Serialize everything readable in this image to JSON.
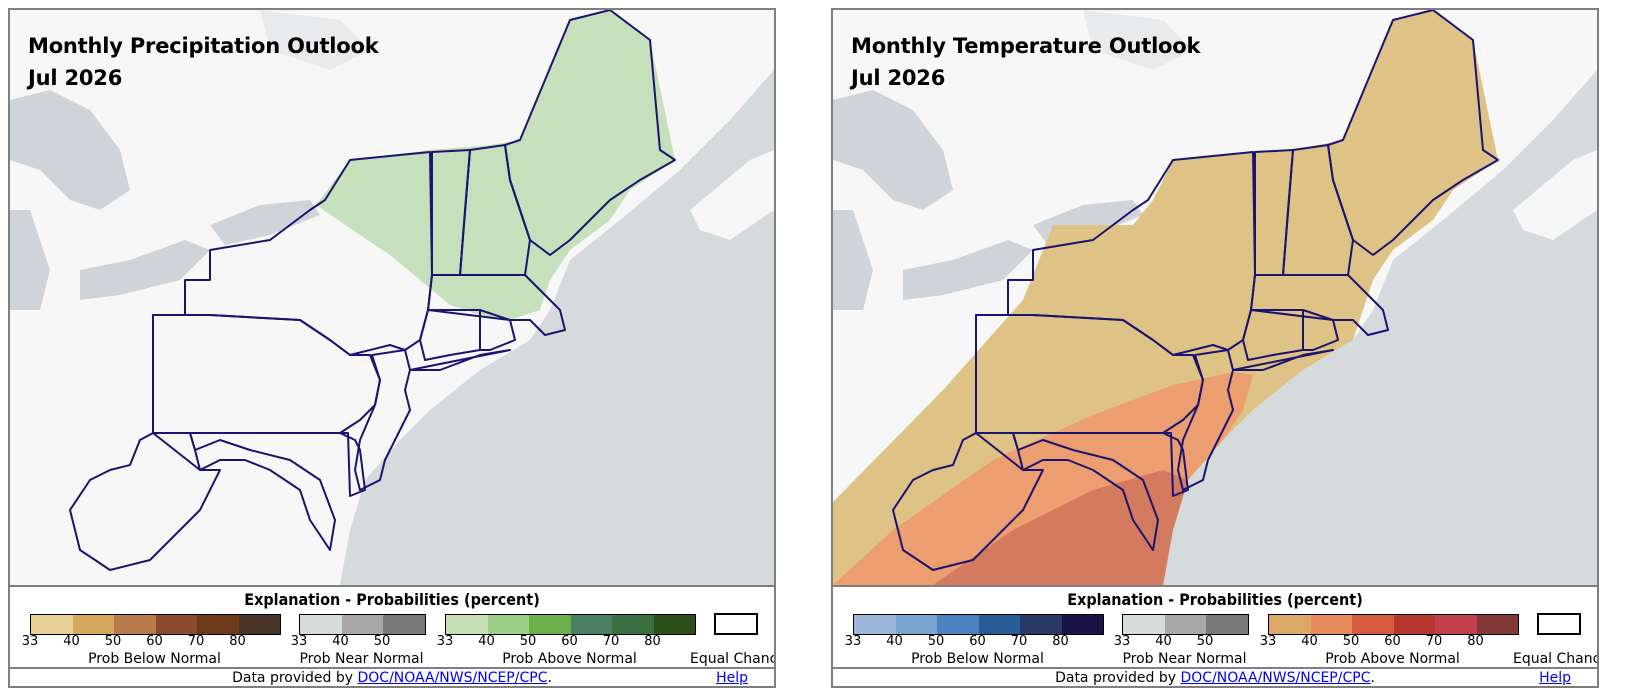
{
  "left_panel": {
    "title": "Monthly Precipitation Outlook",
    "date": "Jul 2026",
    "legend": {
      "heading": "Explanation - Probabilities (percent)",
      "below": {
        "label": "Prob Below Normal",
        "ticks": [
          "33",
          "40",
          "50",
          "60",
          "70",
          "80"
        ],
        "colors": [
          "#e8d196",
          "#d4a85a",
          "#b87a48",
          "#8c4a2e",
          "#6e3a1a",
          "#4a3628"
        ]
      },
      "near": {
        "label": "Prob Near Normal",
        "ticks": [
          "33",
          "40",
          "50"
        ],
        "colors": [
          "#d4dcdc",
          "#a8a8a8",
          "#7a7878"
        ]
      },
      "above": {
        "label": "Prob Above Normal",
        "ticks": [
          "33",
          "40",
          "50",
          "60",
          "70",
          "80"
        ],
        "colors": [
          "#c4e0b4",
          "#9ccf88",
          "#6cb04c",
          "#4a7f64",
          "#3a7040",
          "#2a5018"
        ]
      },
      "equal": {
        "label": "Equal Chance"
      }
    },
    "footer": {
      "prefix": "Data provided by ",
      "link": "DOC/NOAA/NWS/NCEP/CPC",
      "suffix": ".",
      "help": "Help"
    }
  },
  "right_panel": {
    "title": "Monthly Temperature Outlook",
    "date": "Jul 2026",
    "legend": {
      "heading": "Explanation - Probabilities (percent)",
      "below": {
        "label": "Prob Below Normal",
        "ticks": [
          "33",
          "40",
          "50",
          "60",
          "70",
          "80"
        ],
        "colors": [
          "#9cb8d8",
          "#7aa4d0",
          "#4a84c0",
          "#2a5c98",
          "#2a3868",
          "#1a1448"
        ]
      },
      "near": {
        "label": "Prob Near Normal",
        "ticks": [
          "33",
          "40",
          "50"
        ],
        "colors": [
          "#d4dcdc",
          "#a8a8a8",
          "#7a7878"
        ]
      },
      "above": {
        "label": "Prob Above Normal",
        "ticks": [
          "33",
          "40",
          "50",
          "60",
          "70",
          "80"
        ],
        "colors": [
          "#dca868",
          "#e88c5c",
          "#d45c3c",
          "#b83830",
          "#c0404c",
          "#843838"
        ]
      },
      "equal": {
        "label": "Equal Chance"
      }
    },
    "footer": {
      "prefix": "Data provided by ",
      "link": "DOC/NOAA/NWS/NCEP/CPC",
      "suffix": ".",
      "help": "Help"
    }
  },
  "map_colors": {
    "ocean": "#d5dadd",
    "land": "#f7f7f7",
    "lakes": "#cfd4d8",
    "state_lines": "#1a1470",
    "precip_above_33": "#c6e0bc",
    "temp_above_33": "#dfc285",
    "temp_above_40": "#ec9e70",
    "temp_above_50": "#d47a5e"
  }
}
